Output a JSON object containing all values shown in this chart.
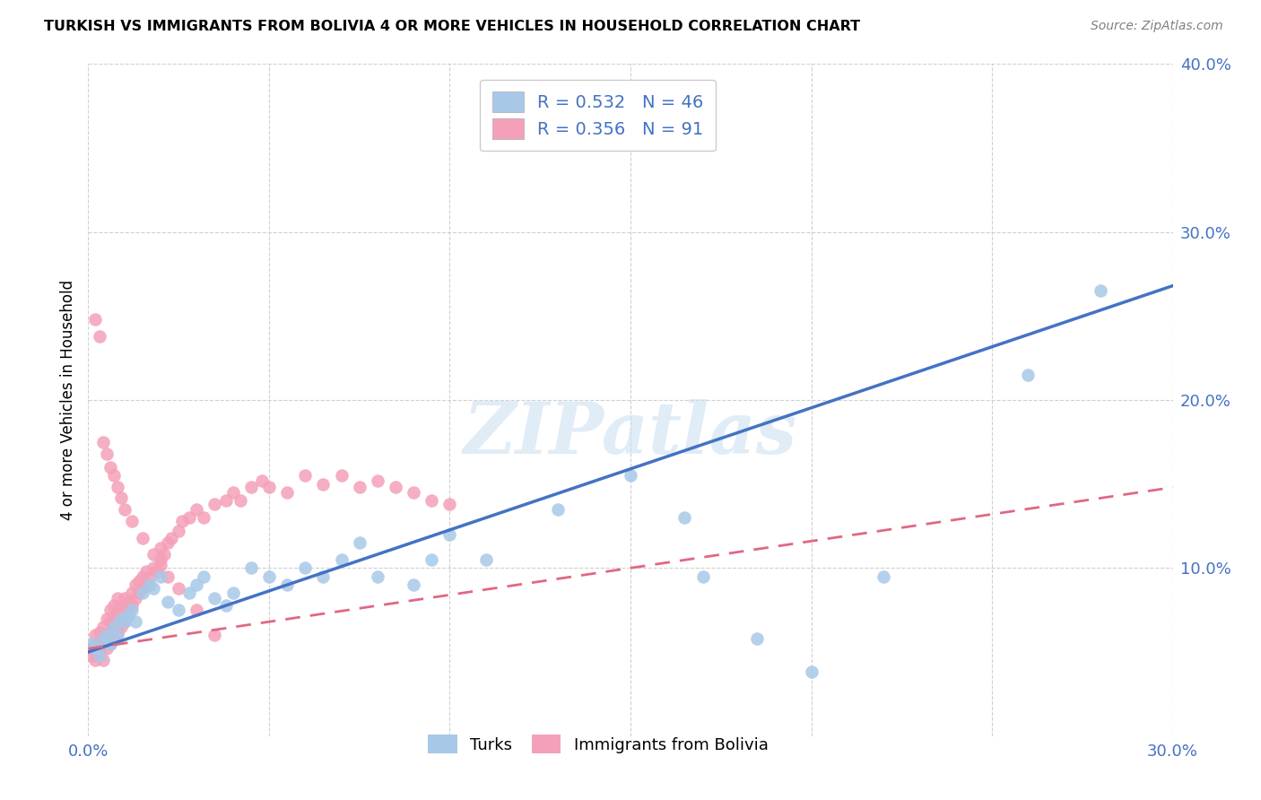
{
  "title": "TURKISH VS IMMIGRANTS FROM BOLIVIA 4 OR MORE VEHICLES IN HOUSEHOLD CORRELATION CHART",
  "source": "Source: ZipAtlas.com",
  "ylabel": "4 or more Vehicles in Household",
  "xlim": [
    0.0,
    0.3
  ],
  "ylim": [
    0.0,
    0.4
  ],
  "xticks": [
    0.0,
    0.05,
    0.1,
    0.15,
    0.2,
    0.25,
    0.3
  ],
  "yticks": [
    0.0,
    0.1,
    0.2,
    0.3,
    0.4
  ],
  "watermark": "ZIPatlas",
  "legend_label1": "Turks",
  "legend_label2": "Immigrants from Bolivia",
  "R1": 0.532,
  "N1": 46,
  "R2": 0.356,
  "N2": 91,
  "color_turks": "#a8c8e8",
  "color_bolivia": "#f4a0b8",
  "line_color_turks": "#4472c4",
  "line_color_bolivia": "#e06880",
  "turks_x": [
    0.001,
    0.002,
    0.003,
    0.004,
    0.005,
    0.006,
    0.007,
    0.008,
    0.009,
    0.01,
    0.011,
    0.012,
    0.013,
    0.015,
    0.017,
    0.018,
    0.02,
    0.022,
    0.025,
    0.028,
    0.03,
    0.032,
    0.035,
    0.038,
    0.04,
    0.045,
    0.05,
    0.055,
    0.06,
    0.065,
    0.07,
    0.075,
    0.08,
    0.09,
    0.095,
    0.1,
    0.11,
    0.13,
    0.15,
    0.165,
    0.17,
    0.185,
    0.2,
    0.22,
    0.26,
    0.28
  ],
  "turks_y": [
    0.055,
    0.052,
    0.048,
    0.058,
    0.06,
    0.055,
    0.065,
    0.06,
    0.07,
    0.068,
    0.072,
    0.075,
    0.068,
    0.085,
    0.09,
    0.088,
    0.095,
    0.08,
    0.075,
    0.085,
    0.09,
    0.095,
    0.082,
    0.078,
    0.085,
    0.1,
    0.095,
    0.09,
    0.1,
    0.095,
    0.105,
    0.115,
    0.095,
    0.09,
    0.105,
    0.12,
    0.105,
    0.135,
    0.155,
    0.13,
    0.095,
    0.058,
    0.038,
    0.095,
    0.215,
    0.265
  ],
  "bolivia_x": [
    0.001,
    0.001,
    0.002,
    0.002,
    0.002,
    0.003,
    0.003,
    0.003,
    0.004,
    0.004,
    0.004,
    0.005,
    0.005,
    0.005,
    0.006,
    0.006,
    0.006,
    0.006,
    0.007,
    0.007,
    0.007,
    0.007,
    0.008,
    0.008,
    0.008,
    0.008,
    0.009,
    0.009,
    0.009,
    0.01,
    0.01,
    0.01,
    0.011,
    0.011,
    0.012,
    0.012,
    0.013,
    0.013,
    0.014,
    0.014,
    0.015,
    0.015,
    0.016,
    0.016,
    0.017,
    0.018,
    0.019,
    0.02,
    0.02,
    0.021,
    0.022,
    0.023,
    0.025,
    0.026,
    0.028,
    0.03,
    0.032,
    0.035,
    0.038,
    0.04,
    0.042,
    0.045,
    0.048,
    0.05,
    0.055,
    0.06,
    0.065,
    0.07,
    0.075,
    0.08,
    0.085,
    0.09,
    0.095,
    0.1,
    0.002,
    0.003,
    0.004,
    0.005,
    0.006,
    0.007,
    0.008,
    0.009,
    0.01,
    0.012,
    0.015,
    0.018,
    0.02,
    0.022,
    0.025,
    0.03,
    0.035
  ],
  "bolivia_y": [
    0.048,
    0.052,
    0.045,
    0.055,
    0.06,
    0.05,
    0.055,
    0.062,
    0.045,
    0.058,
    0.065,
    0.052,
    0.058,
    0.07,
    0.055,
    0.062,
    0.068,
    0.075,
    0.058,
    0.065,
    0.072,
    0.078,
    0.062,
    0.068,
    0.075,
    0.082,
    0.065,
    0.072,
    0.078,
    0.068,
    0.075,
    0.082,
    0.072,
    0.08,
    0.078,
    0.085,
    0.082,
    0.09,
    0.085,
    0.092,
    0.088,
    0.095,
    0.09,
    0.098,
    0.095,
    0.1,
    0.098,
    0.105,
    0.112,
    0.108,
    0.115,
    0.118,
    0.122,
    0.128,
    0.13,
    0.135,
    0.13,
    0.138,
    0.14,
    0.145,
    0.14,
    0.148,
    0.152,
    0.148,
    0.145,
    0.155,
    0.15,
    0.155,
    0.148,
    0.152,
    0.148,
    0.145,
    0.14,
    0.138,
    0.248,
    0.238,
    0.175,
    0.168,
    0.16,
    0.155,
    0.148,
    0.142,
    0.135,
    0.128,
    0.118,
    0.108,
    0.102,
    0.095,
    0.088,
    0.075,
    0.06
  ]
}
